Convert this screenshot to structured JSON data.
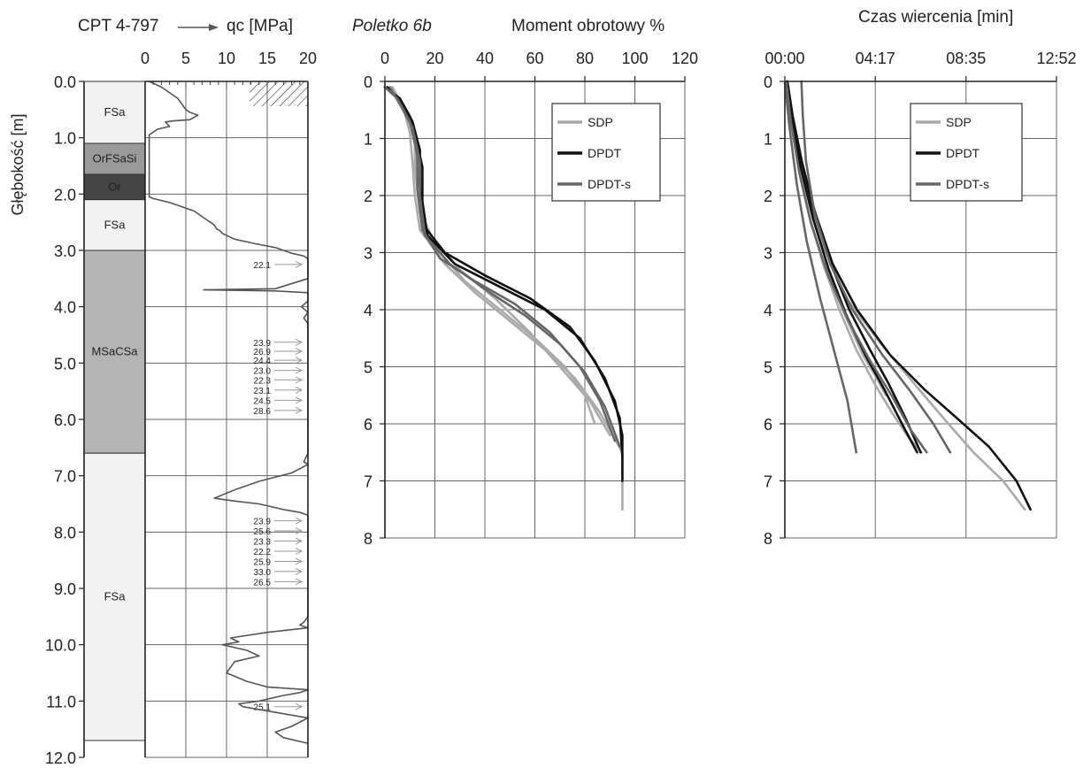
{
  "chart_data": [
    {
      "type": "line",
      "title": "CPT 4-797",
      "xlabel": "qc [MPa]",
      "ylabel": "Głębokość [m]",
      "xlim": [
        0,
        20
      ],
      "ylim": [
        0,
        12
      ],
      "x_ticks": [
        "0",
        "5",
        "10",
        "15",
        "20"
      ],
      "y_ticks": [
        "0.0",
        "1.0",
        "2.0",
        "3.0",
        "4.0",
        "5.0",
        "6.0",
        "7.0",
        "8.0",
        "9.0",
        "10.0",
        "11.0",
        "12.0"
      ],
      "grid": true,
      "soil_layers": [
        {
          "label": "FSa",
          "top": 0.0,
          "bottom": 1.1,
          "color": "#f2f2f2"
        },
        {
          "label": "OrFSaSi",
          "top": 1.1,
          "bottom": 1.65,
          "color": "#9a9a9a"
        },
        {
          "label": "Or",
          "top": 1.65,
          "bottom": 2.1,
          "color": "#444444"
        },
        {
          "label": "FSa",
          "top": 2.1,
          "bottom": 3.0,
          "color": "#f2f2f2"
        },
        {
          "label": "MSaCSa",
          "top": 3.0,
          "bottom": 6.6,
          "color": "#b4b4b4"
        },
        {
          "label": "FSa",
          "top": 6.6,
          "bottom": 11.7,
          "color": "#f2f2f2"
        }
      ],
      "series": [
        {
          "x": [
            0.5,
            2,
            4,
            5,
            5.5,
            6.5,
            5.5,
            3.5,
            2.5,
            3,
            1.5,
            1,
            0.5,
            0.5,
            1,
            3,
            6,
            7.5,
            8.5,
            8.8,
            9.2,
            9.5,
            11,
            13.5,
            16,
            18,
            19.5,
            20,
            20,
            16,
            7.2,
            16,
            20,
            20,
            19.2,
            20,
            19.5,
            20,
            20,
            20,
            19.5,
            20,
            18,
            14,
            11,
            8.5,
            11,
            14,
            17,
            19,
            20,
            20,
            19.5,
            19,
            20,
            15,
            10.5,
            11.5,
            9.5,
            12.5,
            14,
            11,
            10,
            12.5,
            15,
            20,
            19,
            17,
            14,
            11.5,
            12,
            16,
            20,
            18,
            16,
            17,
            20
          ],
          "y": [
            0,
            0.1,
            0.3,
            0.5,
            0.55,
            0.6,
            0.68,
            0.7,
            0.72,
            0.8,
            0.85,
            0.9,
            0.95,
            2.05,
            2.08,
            2.15,
            2.3,
            2.45,
            2.55,
            2.62,
            2.65,
            2.7,
            2.8,
            2.88,
            2.95,
            3.05,
            3.1,
            3.15,
            3.5,
            3.68,
            3.7,
            3.72,
            3.75,
            3.9,
            4.0,
            4.1,
            4.2,
            4.3,
            4.7,
            6.6,
            6.75,
            6.8,
            6.95,
            7.1,
            7.25,
            7.4,
            7.45,
            7.5,
            7.6,
            7.65,
            7.7,
            9.5,
            9.6,
            9.65,
            9.7,
            9.78,
            9.88,
            9.95,
            10.0,
            10.1,
            10.2,
            10.3,
            10.5,
            10.65,
            10.75,
            10.8,
            10.85,
            10.9,
            11.0,
            11.05,
            11.1,
            11.2,
            11.3,
            11.45,
            11.55,
            11.65,
            11.75
          ],
          "color": "#555555"
        }
      ],
      "cutoff_annotations": [
        {
          "label": "22.1",
          "depth": 3.25
        },
        {
          "label": "23.9",
          "depth": 4.63
        },
        {
          "label": "26.9",
          "depth": 4.79
        },
        {
          "label": "24.4",
          "depth": 4.95
        },
        {
          "label": "23.0",
          "depth": 5.13
        },
        {
          "label": "22.3",
          "depth": 5.3
        },
        {
          "label": "23.1",
          "depth": 5.48
        },
        {
          "label": "24.5",
          "depth": 5.66
        },
        {
          "label": "28.6",
          "depth": 5.84
        },
        {
          "label": "23.9",
          "depth": 7.8
        },
        {
          "label": "25.6",
          "depth": 7.98
        },
        {
          "label": "23.3",
          "depth": 8.16
        },
        {
          "label": "22.2",
          "depth": 8.34
        },
        {
          "label": "25.9",
          "depth": 8.52
        },
        {
          "label": "33.0",
          "depth": 8.7
        },
        {
          "label": "26.5",
          "depth": 8.88
        },
        {
          "label": "25.1",
          "depth": 11.1
        }
      ]
    },
    {
      "type": "line",
      "title": "Poletko 6b",
      "xlabel": "Moment obrotowy %",
      "ylabel": "",
      "xlim": [
        0,
        120
      ],
      "ylim": [
        0,
        8
      ],
      "x_ticks": [
        "0",
        "20",
        "40",
        "60",
        "80",
        "100",
        "120"
      ],
      "y_ticks": [
        "0",
        "1",
        "2",
        "3",
        "4",
        "5",
        "6",
        "7",
        "8"
      ],
      "grid": true,
      "legend": "top-right",
      "legend_entries": [
        "SDP",
        "DPDT",
        "DPDT-s"
      ],
      "series": [
        {
          "name": "SDP",
          "color": "#aaaaaa",
          "x": [
            1,
            6,
            10,
            12,
            12,
            14,
            22,
            32,
            46,
            60,
            72,
            80,
            84
          ],
          "y": [
            0.1,
            0.3,
            0.6,
            1.0,
            1.5,
            2.3,
            3.0,
            3.5,
            4.0,
            4.5,
            5.0,
            5.5,
            6.0
          ]
        },
        {
          "name": "SDP",
          "color": "#aaaaaa",
          "x": [
            2,
            7,
            10,
            11,
            12,
            14,
            24,
            36,
            50,
            64,
            76,
            86,
            95,
            95
          ],
          "y": [
            0.1,
            0.4,
            0.9,
            1.4,
            2.0,
            2.6,
            3.2,
            3.7,
            4.2,
            4.7,
            5.2,
            5.8,
            6.5,
            7.5
          ]
        },
        {
          "name": "SDP",
          "color": "#aaaaaa",
          "x": [
            3,
            8,
            12,
            13,
            14,
            18,
            30,
            44,
            58,
            70,
            82,
            90
          ],
          "y": [
            0.1,
            0.5,
            1.0,
            1.6,
            2.2,
            2.7,
            3.3,
            3.8,
            4.4,
            5.0,
            5.6,
            6.2
          ]
        },
        {
          "name": "DPDT",
          "color": "#111111",
          "x": [
            0,
            6,
            11,
            14,
            14,
            15,
            24,
            40,
            58,
            74,
            84,
            92,
            95,
            95
          ],
          "y": [
            0.1,
            0.3,
            0.7,
            1.2,
            1.8,
            2.5,
            3.0,
            3.4,
            3.8,
            4.3,
            4.9,
            5.6,
            6.2,
            7.0
          ]
        },
        {
          "name": "DPDT",
          "color": "#111111",
          "x": [
            1,
            7,
            12,
            15,
            15,
            17,
            28,
            46,
            64,
            78,
            88,
            94,
            95
          ],
          "y": [
            0.1,
            0.4,
            0.9,
            1.5,
            2.1,
            2.7,
            3.2,
            3.6,
            4.0,
            4.5,
            5.2,
            5.9,
            6.6
          ]
        },
        {
          "name": "DPDT-s",
          "color": "#666666",
          "x": [
            0,
            5,
            10,
            13,
            13,
            15,
            22,
            36,
            52,
            66,
            78,
            86,
            92
          ],
          "y": [
            0.1,
            0.3,
            0.7,
            1.3,
            1.9,
            2.6,
            3.1,
            3.5,
            3.9,
            4.4,
            5.0,
            5.6,
            6.3
          ]
        },
        {
          "name": "DPDT-s",
          "color": "#666666",
          "x": [
            2,
            6,
            11,
            14,
            14,
            16,
            26,
            42,
            56,
            70,
            80,
            88,
            94
          ],
          "y": [
            0.1,
            0.4,
            0.8,
            1.4,
            2.0,
            2.7,
            3.2,
            3.7,
            4.1,
            4.6,
            5.1,
            5.7,
            6.4
          ]
        }
      ]
    },
    {
      "type": "line",
      "title": "Czas wiercenia [min]",
      "xlabel": "Czas wiercenia [min]",
      "ylabel": "",
      "xlim": [
        "00:00",
        "12:52"
      ],
      "ylim": [
        0,
        8
      ],
      "x_ticks": [
        "00:00",
        "04:17",
        "08:35",
        "12:52"
      ],
      "y_ticks": [
        "0",
        "1",
        "2",
        "3",
        "4",
        "5",
        "6",
        "7",
        "8"
      ],
      "grid": true,
      "legend": "top-right",
      "legend_entries": [
        "SDP",
        "DPDT",
        "DPDT-s"
      ],
      "series": [
        {
          "name": "SDP",
          "color": "#aaaaaa",
          "x": [
            "00:05",
            "00:18",
            "00:37",
            "01:07",
            "01:49",
            "02:35",
            "03:23",
            "04:15",
            "05:04",
            "05:47",
            "06:28"
          ],
          "y": [
            0.0,
            0.6,
            1.4,
            2.3,
            3.2,
            4.0,
            4.7,
            5.3,
            5.8,
            6.2,
            6.5
          ]
        },
        {
          "name": "SDP",
          "color": "#aaaaaa",
          "x": [
            "00:05",
            "00:18",
            "00:37",
            "01:07",
            "01:50",
            "02:55",
            "04:33",
            "06:08",
            "07:31",
            "08:56",
            "10:20",
            "11:22"
          ],
          "y": [
            0.0,
            0.5,
            1.2,
            2.0,
            2.9,
            3.8,
            4.6,
            5.3,
            5.9,
            6.5,
            7.0,
            7.5
          ]
        },
        {
          "name": "SDP",
          "color": "#aaaaaa",
          "x": [
            "00:05",
            "00:18",
            "00:40",
            "01:11",
            "01:57",
            "02:51",
            "03:42",
            "04:21",
            "04:47"
          ],
          "y": [
            0.0,
            0.7,
            1.5,
            2.4,
            3.3,
            4.1,
            4.8,
            5.2,
            5.5
          ]
        },
        {
          "name": "DPDT",
          "color": "#111111",
          "x": [
            "00:07",
            "00:22",
            "00:48",
            "01:23",
            "02:11",
            "03:03",
            "04:02",
            "04:55",
            "05:43",
            "06:26"
          ],
          "y": [
            0.0,
            0.6,
            1.4,
            2.3,
            3.2,
            4.0,
            4.7,
            5.3,
            5.9,
            6.5
          ]
        },
        {
          "name": "DPDT",
          "color": "#111111",
          "x": [
            "00:07",
            "00:22",
            "00:48",
            "01:26",
            "02:16",
            "03:25",
            "05:00",
            "06:37",
            "08:09",
            "09:40",
            "10:58",
            "11:38"
          ],
          "y": [
            0.0,
            0.6,
            1.4,
            2.3,
            3.2,
            4.0,
            4.8,
            5.4,
            5.9,
            6.4,
            7.0,
            7.5
          ]
        },
        {
          "name": "DPDT",
          "color": "#111111",
          "x": [
            "00:05",
            "00:19",
            "00:45",
            "01:20",
            "02:05",
            "02:55",
            "03:49",
            "04:43",
            "05:33",
            "06:16"
          ],
          "y": [
            0.0,
            0.7,
            1.5,
            2.4,
            3.3,
            4.1,
            4.8,
            5.4,
            6.0,
            6.5
          ]
        },
        {
          "name": "DPDT-s",
          "color": "#666666",
          "x": [
            "00:00",
            "00:13",
            "00:34",
            "01:02",
            "01:40",
            "02:19",
            "02:58",
            "03:23"
          ],
          "y": [
            0.0,
            0.8,
            1.8,
            2.8,
            3.8,
            4.7,
            5.6,
            6.5
          ]
        },
        {
          "name": "DPDT-s",
          "color": "#666666",
          "x": [
            "00:47",
            "00:51",
            "01:00",
            "01:24",
            "02:09",
            "03:12",
            "04:38",
            "05:53",
            "07:02",
            "07:50"
          ],
          "y": [
            0.0,
            0.6,
            1.4,
            2.3,
            3.2,
            4.0,
            4.8,
            5.4,
            6.0,
            6.5
          ]
        },
        {
          "name": "DPDT-s",
          "color": "#666666",
          "x": [
            "00:04",
            "00:17",
            "00:41",
            "01:15",
            "02:03",
            "03:01",
            "04:03",
            "05:03",
            "05:57",
            "06:43"
          ],
          "y": [
            0.0,
            0.7,
            1.6,
            2.5,
            3.4,
            4.2,
            4.9,
            5.5,
            6.1,
            6.5
          ]
        }
      ]
    }
  ]
}
